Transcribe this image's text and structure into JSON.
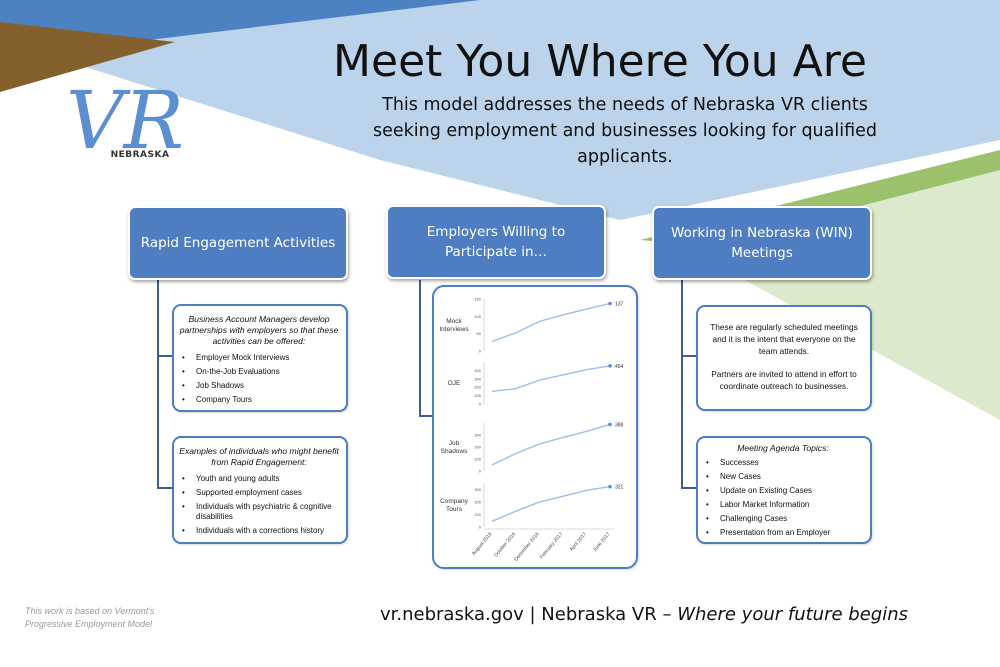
{
  "header": {
    "title": "Meet You Where You Are",
    "subtitle": "This model addresses the needs of Nebraska VR clients seeking employment and businesses looking for qualified applicants."
  },
  "logo": {
    "letters": "VR",
    "state": "NEBRASKA"
  },
  "columns": {
    "rapid": {
      "header": "Rapid Engagement Activities",
      "card1": {
        "intro": "Business Account Managers develop partnerships with employers so that these activities can be offered:",
        "items": [
          "Employer Mock Interviews",
          "On-the-Job Evaluations",
          "Job Shadows",
          "Company Tours"
        ]
      },
      "card2": {
        "intro": "Examples of individuals who might benefit from Rapid Engagement:",
        "items": [
          "Youth and young adults",
          "Supported employment cases",
          "Individuals with psychiatric & cognitive disabilities",
          "Individuals with a corrections history"
        ]
      }
    },
    "employers": {
      "header": "Employers Willing to Participate in…"
    },
    "win": {
      "header": "Working in Nebraska (WIN) Meetings",
      "card1": {
        "p1": "These are regularly scheduled meetings and it is the intent that everyone on the team attends.",
        "p2": "Partners are invited to attend in effort to coordinate outreach to businesses."
      },
      "card2": {
        "title": "Meeting Agenda Topics:",
        "items": [
          "Successes",
          "New Cases",
          "Update on Existing Cases",
          "Labor Market Information",
          "Challenging Cases",
          "Presentation from an Employer"
        ]
      }
    }
  },
  "chart_data": {
    "type": "line",
    "x": [
      "August 2016",
      "October 2016",
      "December 2016",
      "February 2017",
      "April 2017",
      "June 2017"
    ],
    "series": [
      {
        "name": "Mock Interviews",
        "values": [
          28,
          52,
          85,
          104,
          121,
          137
        ],
        "ylim": [
          0,
          150
        ],
        "yticks": [
          0,
          50,
          100,
          150
        ],
        "end_label": "137"
      },
      {
        "name": "OJE",
        "values": [
          150,
          182,
          282,
          346,
          408,
          454
        ],
        "ylim": [
          0,
          500
        ],
        "yticks": [
          0,
          100,
          200,
          300,
          400
        ],
        "end_label": "454"
      },
      {
        "name": "Job Shadows",
        "values": [
          50,
          145,
          225,
          278,
          330,
          388
        ],
        "ylim": [
          0,
          400
        ],
        "yticks": [
          0,
          100,
          200,
          300
        ],
        "end_label": "388"
      },
      {
        "name": "Company Tours",
        "values": [
          45,
          125,
          198,
          244,
          292,
          321
        ],
        "ylim": [
          0,
          350
        ],
        "yticks": [
          0,
          100,
          200,
          300
        ],
        "end_label": "321"
      }
    ],
    "line_color": "#9fbfe4"
  },
  "footer": {
    "note_line1": "This work is based on Vermont’s",
    "note_line2": "Progressive Employment Model",
    "main_prefix": "vr.nebraska.gov | Nebraska VR – ",
    "main_italic": "Where your future begins"
  }
}
